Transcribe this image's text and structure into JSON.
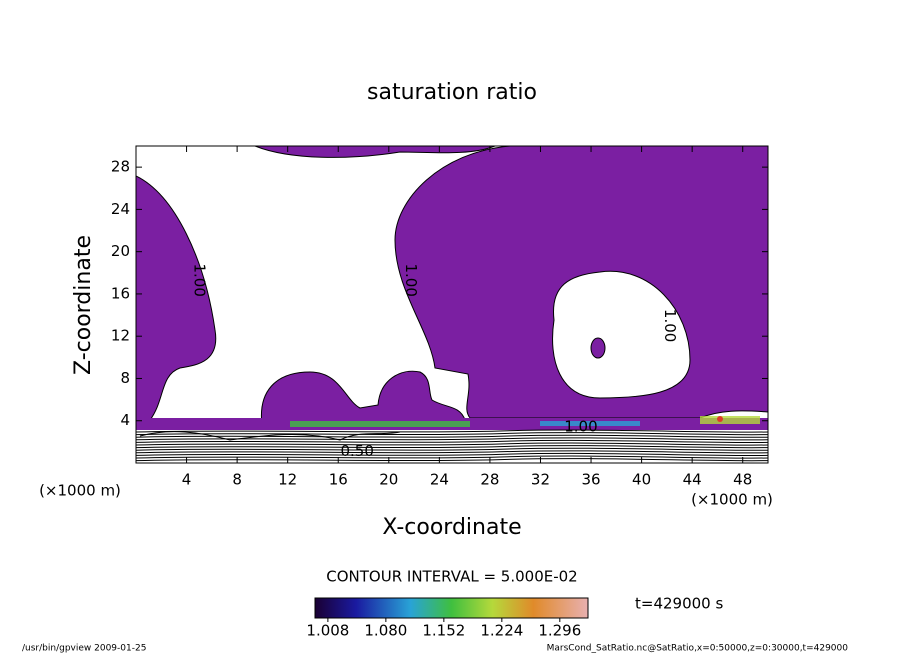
{
  "chart_data": {
    "type": "contour",
    "title": "saturation ratio",
    "x_label": "X-coordinate",
    "y_label": "Z-coordinate",
    "x_unit": "(×1000 m)",
    "y_unit": "(×1000 m)",
    "xlim": [
      0,
      50
    ],
    "ylim": [
      0,
      30
    ],
    "xticks": [
      4,
      8,
      12,
      16,
      20,
      24,
      28,
      32,
      36,
      40,
      44,
      48
    ],
    "yticks": [
      4,
      8,
      12,
      16,
      20,
      24,
      28
    ],
    "fill_color": "#7b1fa2",
    "contour_labels": [
      {
        "value": 1,
        "label": "1.00",
        "x": 5,
        "y": 17.3
      },
      {
        "value": 1,
        "label": "1.00",
        "x": 21.7,
        "y": 17.3
      },
      {
        "value": 1,
        "label": "1.00",
        "x": 42.2,
        "y": 13
      },
      {
        "value": 1,
        "label": "1.00",
        "x": 35.2,
        "y": 3.4
      },
      {
        "value": 0.5,
        "label": "0.50",
        "x": 17.5,
        "y": 1.1
      }
    ],
    "contour_interval": "CONTOUR INTERVAL = 5.000E-02",
    "colorbar": {
      "clim": [
        0.992,
        1.331
      ],
      "ticks": [
        1.008,
        {
          "value": 1.08,
          "label": "1.080"
        },
        1.152,
        1.224,
        1.296
      ]
    },
    "time_label": "t=429000 s",
    "footer_left": "/usr/bin/gpview  2009-01-25",
    "footer_right": "MarsCond_SatRatio.nc@SatRatio,x=0:50000,z=0:30000,t=429000"
  }
}
